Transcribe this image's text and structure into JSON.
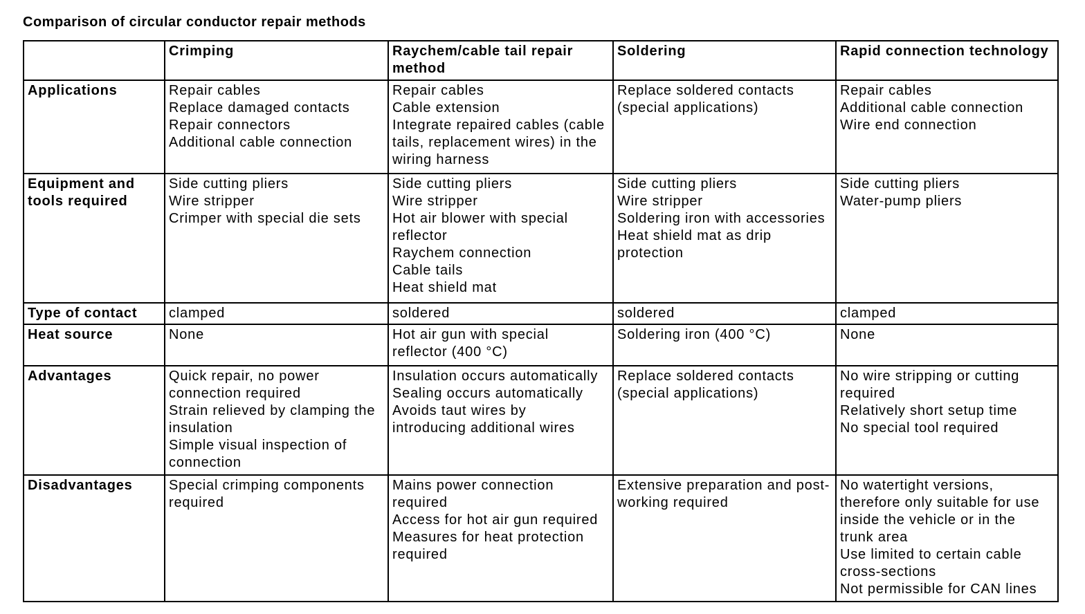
{
  "title": "Comparison of circular conductor repair methods",
  "table": {
    "header": [
      "",
      "Crimping",
      "Raychem/cable tail repair method",
      "Soldering",
      "Rapid connection technology"
    ],
    "rows": [
      {
        "label": "Applications",
        "cells": [
          [
            "Repair cables",
            "Replace damaged contacts",
            "Repair connectors",
            "Additional cable connection"
          ],
          [
            "Repair cables",
            "Cable extension",
            "Integrate repaired cables (cable",
            "tails, replacement wires) in the",
            "wiring harness"
          ],
          [
            "Replace soldered contacts",
            "(special applications)"
          ],
          [
            "Repair cables",
            "Additional cable connection",
            "Wire end connection"
          ]
        ]
      },
      {
        "label": "Equipment and tools required",
        "cells": [
          [
            "Side cutting pliers",
            "Wire stripper",
            "Crimper with special die sets"
          ],
          [
            "Side cutting pliers",
            "Wire stripper",
            "Hot air blower with special",
            "reflector",
            "Raychem connection",
            "Cable tails",
            "Heat shield mat"
          ],
          [
            "Side cutting pliers",
            "Wire stripper",
            "Soldering iron with accessories",
            "Heat shield mat as drip",
            "protection"
          ],
          [
            "Side cutting pliers",
            "Water-pump pliers"
          ]
        ]
      },
      {
        "label": "Type of contact",
        "cells": [
          [
            "clamped"
          ],
          [
            "soldered"
          ],
          [
            "soldered"
          ],
          [
            "clamped"
          ]
        ]
      },
      {
        "label": "Heat source",
        "cells": [
          [
            "None"
          ],
          [
            "Hot air gun with special",
            "reflector (400 °C)"
          ],
          [
            "Soldering iron (400 °C)"
          ],
          [
            "None"
          ]
        ]
      },
      {
        "label": "Advantages",
        "cells": [
          [
            "Quick repair, no power",
            "connection required",
            "Strain relieved by clamping the",
            "insulation",
            "Simple visual inspection of",
            "connection"
          ],
          [
            "Insulation occurs automatically",
            "Sealing occurs automatically",
            "Avoids taut wires by",
            "introducing additional wires"
          ],
          [
            "Replace soldered contacts",
            "(special applications)"
          ],
          [
            "No wire stripping or cutting",
            "required",
            "Relatively short setup time",
            "No special tool required"
          ]
        ]
      },
      {
        "label": "Disadvantages",
        "cells": [
          [
            "Special crimping components",
            "required"
          ],
          [
            "Mains power connection",
            "required",
            "Access for hot air gun required",
            "Measures for heat protection",
            "required"
          ],
          [
            "Extensive preparation and post-",
            "working required"
          ],
          [
            "No watertight versions,",
            "therefore only suitable for use",
            "inside the vehicle or in the",
            "trunk area",
            "Use limited to certain cable",
            "cross-sections",
            "Not permissible for CAN lines"
          ]
        ]
      }
    ]
  }
}
